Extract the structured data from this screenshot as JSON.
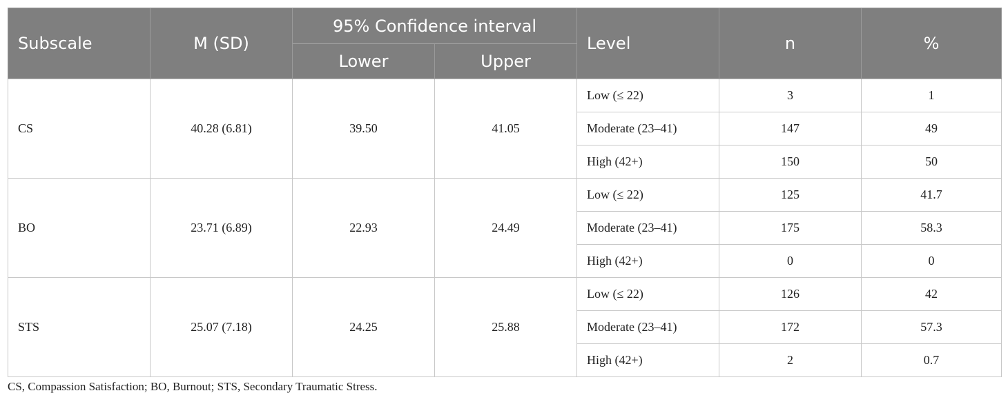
{
  "table": {
    "headers": {
      "subscale": "Subscale",
      "m_sd": "M (SD)",
      "ci": "95% Confidence interval",
      "lower": "Lower",
      "upper": "Upper",
      "level": "Level",
      "n": "n",
      "pct": "%"
    },
    "groups": [
      {
        "subscale": "CS",
        "m_sd": "40.28 (6.81)",
        "lower": "39.50",
        "upper": "41.05",
        "rows": [
          {
            "level": "Low (≤ 22)",
            "n": "3",
            "pct": "1"
          },
          {
            "level": "Moderate (23–41)",
            "n": "147",
            "pct": "49"
          },
          {
            "level": "High (42+)",
            "n": "150",
            "pct": "50"
          }
        ]
      },
      {
        "subscale": "BO",
        "m_sd": "23.71 (6.89)",
        "lower": "22.93",
        "upper": "24.49",
        "rows": [
          {
            "level": "Low (≤ 22)",
            "n": "125",
            "pct": "41.7"
          },
          {
            "level": "Moderate (23–41)",
            "n": "175",
            "pct": "58.3"
          },
          {
            "level": "High (42+)",
            "n": "0",
            "pct": "0"
          }
        ]
      },
      {
        "subscale": "STS",
        "m_sd": "25.07 (7.18)",
        "lower": "24.25",
        "upper": "25.88",
        "rows": [
          {
            "level": "Low (≤ 22)",
            "n": "126",
            "pct": "42"
          },
          {
            "level": "Moderate (23–41)",
            "n": "172",
            "pct": "57.3"
          },
          {
            "level": "High (42+)",
            "n": "2",
            "pct": "0.7"
          }
        ]
      }
    ]
  },
  "footnote": "CS, Compassion Satisfaction; BO, Burnout; STS, Secondary Traumatic Stress."
}
